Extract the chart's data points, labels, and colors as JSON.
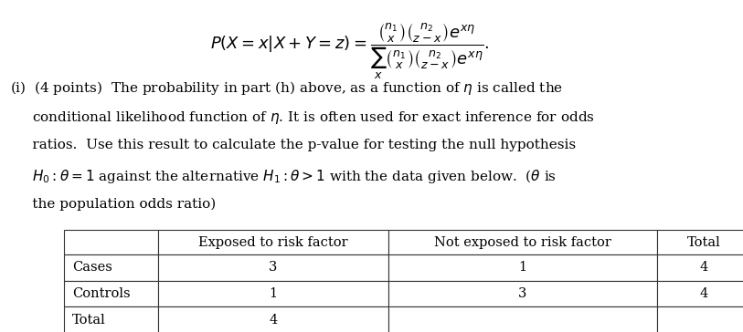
{
  "formula": "P(X = x|X + Y = z) = \\frac{\\binom{n_1}{x}\\binom{n_2}{z-x}e^{x\\eta}}{\\sum_x \\binom{n_1}{x}\\binom{n_2}{z-x}e^{x\\eta}}.",
  "paragraph": "(i)  (4 points)  The probability in part (h) above, as a function of $\\eta$ is called the\n     conditional likelihood function of $\\eta$. It is often used for exact inference for odds\n     ratios.  Use this result to calculate the p-value for testing the null hypothesis\n     $H_0 : \\theta = 1$ against the alternative $H_1 : \\theta > 1$ with the data given below.  ($\\theta$ is\n     the population odds ratio)",
  "table_headers": [
    "",
    "Exposed to risk factor",
    "Not exposed to risk factor",
    "Total"
  ],
  "table_rows": [
    [
      "Cases",
      "3",
      "1",
      "4"
    ],
    [
      "Controls",
      "1",
      "3",
      "4"
    ],
    [
      "Total",
      "4",
      "",
      ""
    ]
  ],
  "bg_color": "#ffffff",
  "text_color": "#000000",
  "font_size": 11,
  "formula_font_size": 13
}
